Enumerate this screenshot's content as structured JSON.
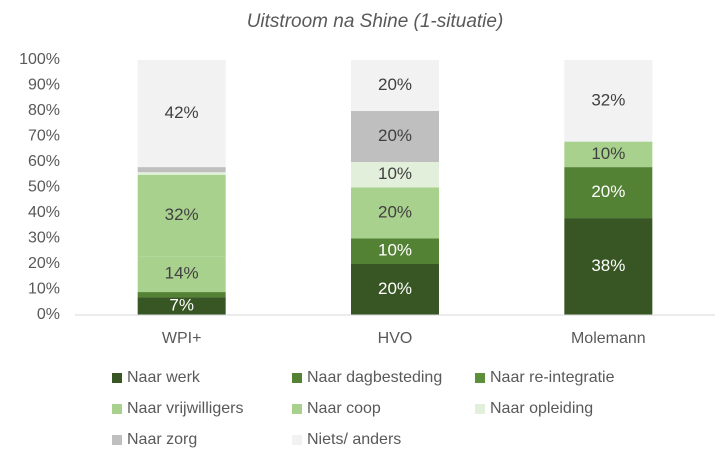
{
  "chart_data": {
    "type": "stacked_bar",
    "title": "Uitstroom na Shine (1-situatie)",
    "categories": [
      "WPI+",
      "HVO",
      "Molemann"
    ],
    "series": [
      {
        "name": "Naar werk",
        "color": "#375623",
        "values": [
          7,
          20,
          38
        ],
        "value_labels": [
          "7%",
          "20%",
          "38%"
        ]
      },
      {
        "name": "Naar dagbesteding",
        "color": "#548235",
        "values": [
          2,
          10,
          20
        ],
        "value_labels": [
          null,
          "10%",
          "20%"
        ]
      },
      {
        "name": "Naar re-integratie",
        "color": "#5b8f3a",
        "values": [
          0,
          0,
          0
        ],
        "value_labels": [
          null,
          null,
          null
        ]
      },
      {
        "name": "Naar vrijwilligers",
        "color": "#a9d18e",
        "values": [
          14,
          20,
          10
        ],
        "value_labels": [
          "14%",
          "20%",
          "10%"
        ]
      },
      {
        "name": "Naar coop",
        "color": "#a9d18e",
        "values": [
          32,
          0,
          0
        ],
        "value_labels": [
          "32%",
          null,
          null
        ]
      },
      {
        "name": "Naar opleiding",
        "color": "#e2efda",
        "values": [
          1,
          10,
          0
        ],
        "value_labels": [
          null,
          "10%",
          null
        ]
      },
      {
        "name": "Naar zorg",
        "color": "#bfbfbf",
        "values": [
          2,
          20,
          0
        ],
        "value_labels": [
          null,
          "20%",
          null
        ]
      },
      {
        "name": "Niets/ anders",
        "color": "#f2f2f2",
        "values": [
          42,
          20,
          32
        ],
        "value_labels": [
          "42%",
          "20%",
          "32%"
        ]
      }
    ],
    "ylim": [
      0,
      100
    ],
    "yticks": [
      {
        "value": 0,
        "label": "0%"
      },
      {
        "value": 10,
        "label": "10%"
      },
      {
        "value": 20,
        "label": "20%"
      },
      {
        "value": 30,
        "label": "30%"
      },
      {
        "value": 40,
        "label": "40%"
      },
      {
        "value": 50,
        "label": "50%"
      },
      {
        "value": 60,
        "label": "60%"
      },
      {
        "value": 70,
        "label": "70%"
      },
      {
        "value": 80,
        "label": "80%"
      },
      {
        "value": 90,
        "label": "90%"
      },
      {
        "value": 100,
        "label": "100%"
      }
    ],
    "legend": "bottom"
  }
}
